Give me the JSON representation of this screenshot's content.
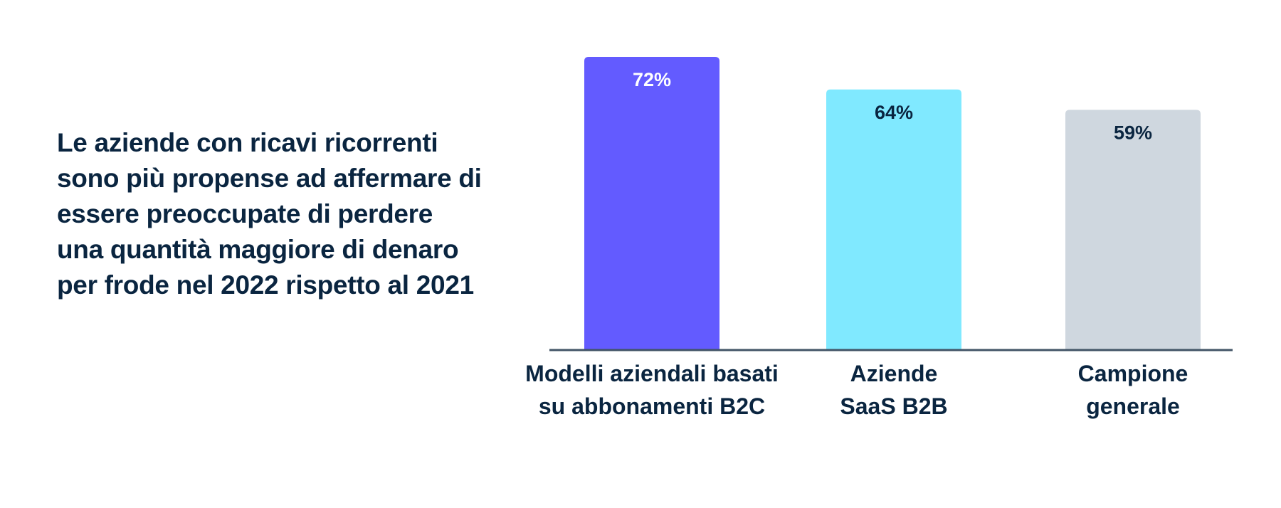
{
  "headline": "Le aziende con ricavi ricorrenti sono più propense ad affermare di essere preoccupate di perdere una quantità maggiore di denaro per frode nel 2022 rispetto al 2021",
  "chart_data": {
    "type": "bar",
    "title": "",
    "xlabel": "",
    "ylabel": "",
    "ylim": [
      0,
      72
    ],
    "grid": false,
    "categories": [
      [
        "Modelli aziendali basati",
        "su abbonamenti B2C"
      ],
      [
        "Aziende",
        "SaaS B2B"
      ],
      [
        "Campione",
        "generale"
      ]
    ],
    "values": [
      72,
      64,
      59
    ],
    "value_labels": [
      "72%",
      "64%",
      "59%"
    ],
    "colors": [
      "#635bff",
      "#80e9ff",
      "#cfd7df"
    ],
    "label_colors": [
      "#ffffff",
      "#0a2540",
      "#0a2540"
    ],
    "axis_color": "#425466"
  }
}
